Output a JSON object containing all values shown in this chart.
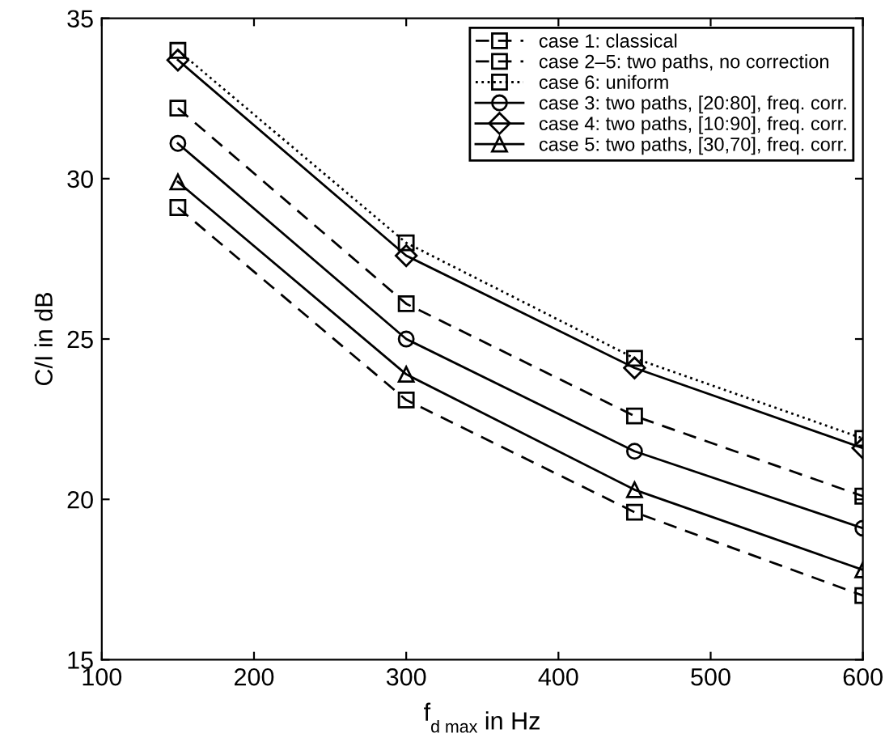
{
  "chart_data": {
    "type": "line",
    "xlabel": "f$_{d max}$ in Hz",
    "ylabel": "C/I in dB",
    "x": [
      150,
      300,
      450,
      600
    ],
    "series": [
      {
        "name": "case 1: classical",
        "color": "#000000",
        "marker": "square",
        "line_style": "dashed",
        "values": [
          29.1,
          23.1,
          19.6,
          17.0
        ]
      },
      {
        "name": "case 2–5: two paths, no correction",
        "color": "#000000",
        "marker": "square",
        "line_style": "dashed",
        "values": [
          32.2,
          26.1,
          22.6,
          20.1
        ]
      },
      {
        "name": "case 6: uniform",
        "color": "#000000",
        "marker": "square",
        "line_style": "dotted",
        "values": [
          34.0,
          28.0,
          24.4,
          21.9
        ]
      },
      {
        "name": "case 3: two paths, [20:80], freq. corr.",
        "color": "#000000",
        "marker": "circle",
        "line_style": "solid",
        "values": [
          31.1,
          25.0,
          21.5,
          19.1
        ]
      },
      {
        "name": "case 4: two paths, [10:90], freq. corr.",
        "color": "#000000",
        "marker": "diamond",
        "line_style": "solid",
        "values": [
          33.7,
          27.6,
          24.1,
          21.6
        ]
      },
      {
        "name": "case 5: two paths, [30,70], freq. corr.",
        "color": "#000000",
        "marker": "triangle",
        "line_style": "solid",
        "values": [
          29.9,
          23.9,
          20.3,
          17.8
        ]
      }
    ],
    "xlim": [
      100,
      600
    ],
    "ylim": [
      15,
      35
    ],
    "xticks": [
      100,
      200,
      300,
      400,
      500,
      600
    ],
    "yticks": [
      15,
      20,
      25,
      30,
      35
    ],
    "grid": false,
    "legend": "top right"
  }
}
